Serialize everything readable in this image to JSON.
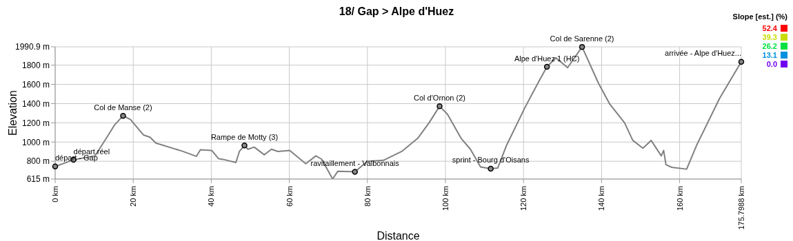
{
  "chart_data": {
    "type": "line",
    "title": "18/ Gap > Alpe d'Huez",
    "xlabel": "Distance",
    "ylabel": "Elevation",
    "x": [
      0,
      4.7,
      10.2,
      12,
      13.8,
      15.2,
      17.4,
      19.3,
      22.6,
      24.3,
      25.8,
      32.5,
      36.2,
      37.2,
      40.1,
      41.9,
      43,
      46.3,
      47.2,
      48.5,
      49.4,
      51,
      53.6,
      55.4,
      57.1,
      60.1,
      64.2,
      66.8,
      68.3,
      71.1,
      72.4,
      76.8,
      80,
      84.1,
      88.8,
      92.9,
      95.8,
      98.5,
      100.5,
      104,
      106.4,
      109,
      111.6,
      113.4,
      115.7,
      120.4,
      124,
      126,
      128.3,
      131.3,
      135,
      139.2,
      142.1,
      145.9,
      148,
      150.6,
      152.7,
      155.3,
      155.9,
      156.5,
      158,
      161.8,
      164.4,
      170.2,
      175.7988
    ],
    "series": [
      {
        "color": "#808080",
        "values": [
          746,
          815,
          856,
          970,
          1085,
          1177,
          1273,
          1234,
          1074,
          1050,
          989,
          906,
          851,
          920,
          913,
          826,
          820,
          787,
          902,
          964,
          925,
          947,
          867,
          925,
          902,
          913,
          775,
          856,
          821,
          615,
          695,
          691,
          799,
          810,
          902,
          1039,
          1200,
          1372,
          1291,
          1039,
          925,
          741,
          723,
          730,
          970,
          1361,
          1636,
          1783,
          1876,
          1774,
          1990,
          1613,
          1395,
          1200,
          1017,
          936,
          1017,
          856,
          913,
          764,
          737,
          718,
          970,
          1452,
          1835
        ]
      }
    ],
    "xlim": [
      0,
      175.7988
    ],
    "xticks": [
      {
        "value": 0,
        "label": "0 km"
      },
      {
        "value": 20,
        "label": "20 km"
      },
      {
        "value": 40,
        "label": "40 km"
      },
      {
        "value": 60,
        "label": "60 km"
      },
      {
        "value": 80,
        "label": "80 km"
      },
      {
        "value": 100,
        "label": "100 km"
      },
      {
        "value": 120,
        "label": "120 km"
      },
      {
        "value": 140,
        "label": "140 km"
      },
      {
        "value": 160,
        "label": "160 km"
      },
      {
        "value": 175.7988,
        "label": "175.7988 km"
      }
    ],
    "ylim": [
      615,
      1990.9
    ],
    "yticks": [
      {
        "value": 615,
        "label": "615 m"
      },
      {
        "value": 800,
        "label": "800 m"
      },
      {
        "value": 1000,
        "label": "1000 m"
      },
      {
        "value": 1200,
        "label": "1200 m"
      },
      {
        "value": 1400,
        "label": "1400 m"
      },
      {
        "value": 1600,
        "label": "1600 m"
      },
      {
        "value": 1800,
        "label": "1800 m"
      },
      {
        "value": 1990.9,
        "label": "1990.9 m"
      }
    ],
    "grid": true,
    "marker": "none",
    "clabel": "Slope [est.] (%)",
    "clim": [
      0,
      52.4
    ],
    "cticks": [
      {
        "value": 52.4,
        "label": "52.4"
      },
      {
        "value": 39.3,
        "label": "39.3"
      },
      {
        "value": 26.2,
        "label": "26.2"
      },
      {
        "value": 13.1,
        "label": "13.1"
      },
      {
        "value": 0,
        "label": "0.0"
      }
    ],
    "colors": [
      "#ff0000",
      "#c8dc00",
      "#00e040",
      "#0090e0",
      "#7000f0"
    ],
    "annotations": [
      {
        "text": "départ - Gap",
        "x": 0,
        "y": 746
      },
      {
        "text": "départ réel",
        "x": 4.7,
        "y": 815
      },
      {
        "text": "Col de Manse (2)",
        "x": 17.4,
        "y": 1273
      },
      {
        "text": "Rampe de Motty (3)",
        "x": 48.5,
        "y": 964
      },
      {
        "text": "ravitaillement - Valbonnais",
        "x": 76.8,
        "y": 691
      },
      {
        "text": "Col d'Ornon (2)",
        "x": 98.5,
        "y": 1372
      },
      {
        "text": "sprint - Bourg d'Oisans",
        "x": 111.6,
        "y": 723
      },
      {
        "text": "Alpe d'Huez 1 (HC)",
        "x": 126,
        "y": 1783
      },
      {
        "text": "Col de Sarenne (2)",
        "x": 135,
        "y": 1990
      },
      {
        "text": "arrivée - Alpe d'Huez...",
        "x": 175.7988,
        "y": 1835
      }
    ]
  }
}
